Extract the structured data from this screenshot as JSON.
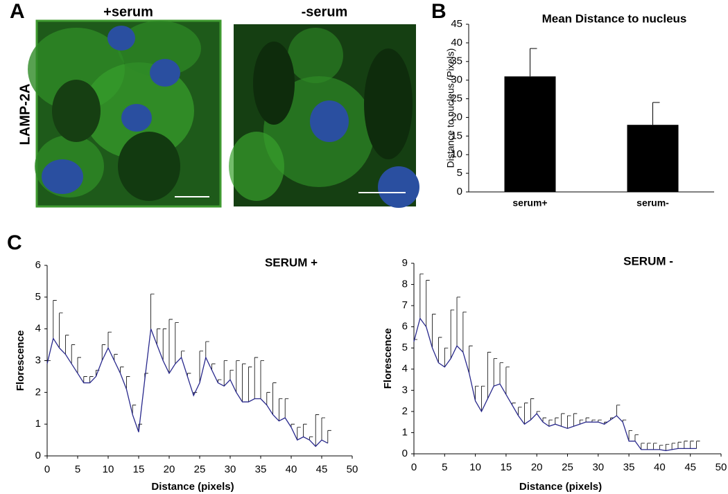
{
  "panel_labels": [
    "A",
    "B",
    "C"
  ],
  "images": {
    "row_label": "LAMP-2A",
    "titles": [
      "+serum",
      "-serum"
    ]
  },
  "chart_data": [
    {
      "type": "bar",
      "title": "Mean Distance to nucleus",
      "ylabel": "Distance to nucleus (Pixels)",
      "categories": [
        "serum+",
        "serum-"
      ],
      "values": [
        31,
        18
      ],
      "errors": [
        7.5,
        6
      ],
      "color": "#000000",
      "ylim": [
        0,
        45
      ],
      "yticks": [
        0,
        5,
        10,
        15,
        20,
        25,
        30,
        35,
        40,
        45
      ]
    },
    {
      "type": "line",
      "title": "SERUM +",
      "xlabel": "Distance (pixels)",
      "ylabel": "Florescence",
      "color": "#28288c",
      "x": [
        0,
        1,
        2,
        3,
        4,
        5,
        6,
        7,
        8,
        9,
        10,
        11,
        12,
        13,
        14,
        15,
        16,
        17,
        18,
        19,
        20,
        21,
        22,
        23,
        24,
        25,
        26,
        27,
        28,
        29,
        30,
        31,
        32,
        33,
        34,
        35,
        36,
        37,
        38,
        39,
        40,
        41,
        42,
        43,
        44,
        45,
        46
      ],
      "values": [
        2.9,
        3.7,
        3.4,
        3.2,
        2.9,
        2.6,
        2.3,
        2.3,
        2.5,
        3.0,
        3.4,
        3.0,
        2.6,
        2.1,
        1.3,
        0.75,
        2.4,
        4.0,
        3.5,
        3.0,
        2.6,
        2.9,
        3.1,
        2.5,
        1.9,
        2.3,
        3.1,
        2.7,
        2.3,
        2.2,
        2.4,
        2.0,
        1.7,
        1.7,
        1.8,
        1.8,
        1.6,
        1.3,
        1.1,
        1.2,
        0.9,
        0.5,
        0.6,
        0.5,
        0.3,
        0.5,
        0.4
      ],
      "errors": [
        0.1,
        1.2,
        1.1,
        0.6,
        0.6,
        0.5,
        0.2,
        0.2,
        0.2,
        0.5,
        0.5,
        0.2,
        0.2,
        0.4,
        0.3,
        0.25,
        0.2,
        1.1,
        0.5,
        1.0,
        1.7,
        1.3,
        0.2,
        0.1,
        0.1,
        1.0,
        0.5,
        0.2,
        0.1,
        0.8,
        0.3,
        1.0,
        1.2,
        1.1,
        1.3,
        1.2,
        0.4,
        1.0,
        0.7,
        0.6,
        0.1,
        0.4,
        0.4,
        0.1,
        1.0,
        0.7,
        0.4
      ],
      "xlim": [
        0,
        50
      ],
      "xticks": [
        0,
        5,
        10,
        15,
        20,
        25,
        30,
        35,
        40,
        45,
        50
      ],
      "ylim": [
        0,
        6
      ],
      "yticks": [
        0,
        1,
        2,
        3,
        4,
        5,
        6
      ]
    },
    {
      "type": "line",
      "title": "SERUM -",
      "xlabel": "Distance (pixels)",
      "ylabel": "Florescence",
      "color": "#28288c",
      "x": [
        0,
        1,
        2,
        3,
        4,
        5,
        6,
        7,
        8,
        9,
        10,
        11,
        12,
        13,
        14,
        15,
        16,
        17,
        18,
        19,
        20,
        21,
        22,
        23,
        24,
        25,
        26,
        27,
        28,
        29,
        30,
        31,
        32,
        33,
        34,
        35,
        36,
        37,
        38,
        39,
        40,
        41,
        42,
        43,
        44,
        45,
        46
      ],
      "values": [
        5.3,
        6.4,
        6.0,
        5.0,
        4.3,
        4.1,
        4.5,
        5.1,
        4.8,
        3.8,
        2.5,
        2.0,
        2.6,
        3.2,
        3.3,
        2.8,
        2.3,
        1.8,
        1.4,
        1.6,
        1.9,
        1.5,
        1.3,
        1.4,
        1.3,
        1.2,
        1.3,
        1.4,
        1.5,
        1.5,
        1.5,
        1.4,
        1.6,
        1.8,
        1.5,
        0.6,
        0.6,
        0.2,
        0.2,
        0.2,
        0.2,
        0.15,
        0.2,
        0.25,
        0.25,
        0.25,
        0.25
      ],
      "errors": [
        0.1,
        2.1,
        2.2,
        1.6,
        1.2,
        0.9,
        2.3,
        2.3,
        1.9,
        1.3,
        0.7,
        1.2,
        2.2,
        1.3,
        1.0,
        1.3,
        0.1,
        0.4,
        1.0,
        1.0,
        0.1,
        0.2,
        0.3,
        0.3,
        0.6,
        0.6,
        0.6,
        0.2,
        0.2,
        0.1,
        0.1,
        0.1,
        0.1,
        0.5,
        0.1,
        0.5,
        0.3,
        0.3,
        0.3,
        0.3,
        0.2,
        0.3,
        0.3,
        0.3,
        0.35,
        0.35,
        0.35
      ],
      "xlim": [
        0,
        50
      ],
      "xticks": [
        0,
        5,
        10,
        15,
        20,
        25,
        30,
        35,
        40,
        45,
        50
      ],
      "ylim": [
        0,
        9
      ],
      "yticks": [
        0,
        1,
        2,
        3,
        4,
        5,
        6,
        7,
        8,
        9
      ]
    }
  ]
}
